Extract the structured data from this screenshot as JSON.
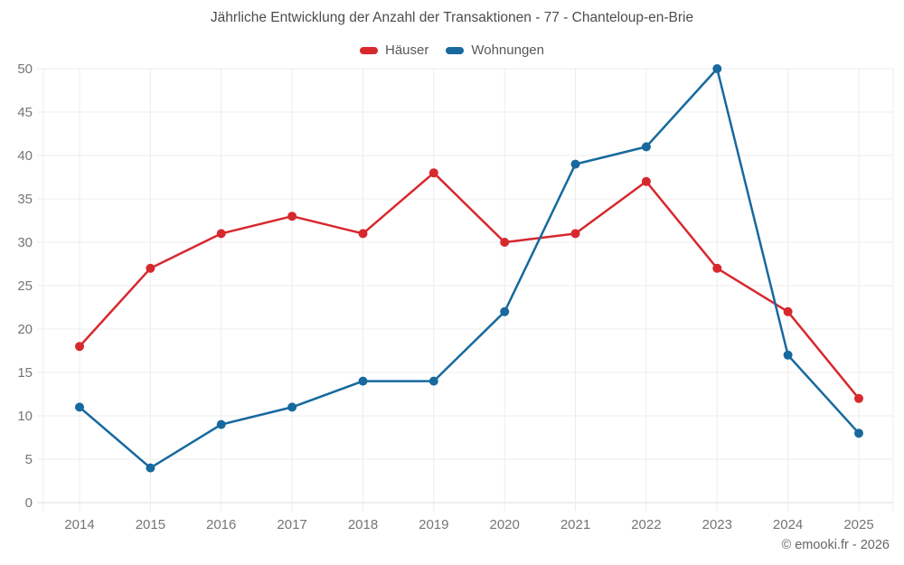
{
  "chart_data": {
    "type": "line",
    "title": "Jährliche Entwicklung der Anzahl der Transaktionen - 77 - Chanteloup-en-Brie",
    "categories": [
      "2014",
      "2015",
      "2016",
      "2017",
      "2018",
      "2019",
      "2020",
      "2021",
      "2022",
      "2023",
      "2024",
      "2025"
    ],
    "series": [
      {
        "name": "Häuser",
        "color": "#d7282e",
        "values": [
          18,
          27,
          31,
          33,
          31,
          38,
          30,
          31,
          37,
          27,
          22,
          12
        ]
      },
      {
        "name": "Wohnungen",
        "color": "#17699e",
        "values": [
          11,
          4,
          9,
          11,
          14,
          14,
          22,
          39,
          41,
          50,
          17,
          8
        ]
      }
    ],
    "xlabel": "",
    "ylabel": "",
    "ylim": [
      0,
      50
    ],
    "ytick_step": 5,
    "grid": true,
    "legend_position": "top-center",
    "footer": "© emooki.fr - 2026",
    "colors": {
      "background": "#ffffff",
      "grid": "#ececec",
      "axis": "#dedede",
      "tick_label": "#757575",
      "title": "#4d4d4d",
      "legend_label": "#595959",
      "footer": "#666666"
    }
  }
}
